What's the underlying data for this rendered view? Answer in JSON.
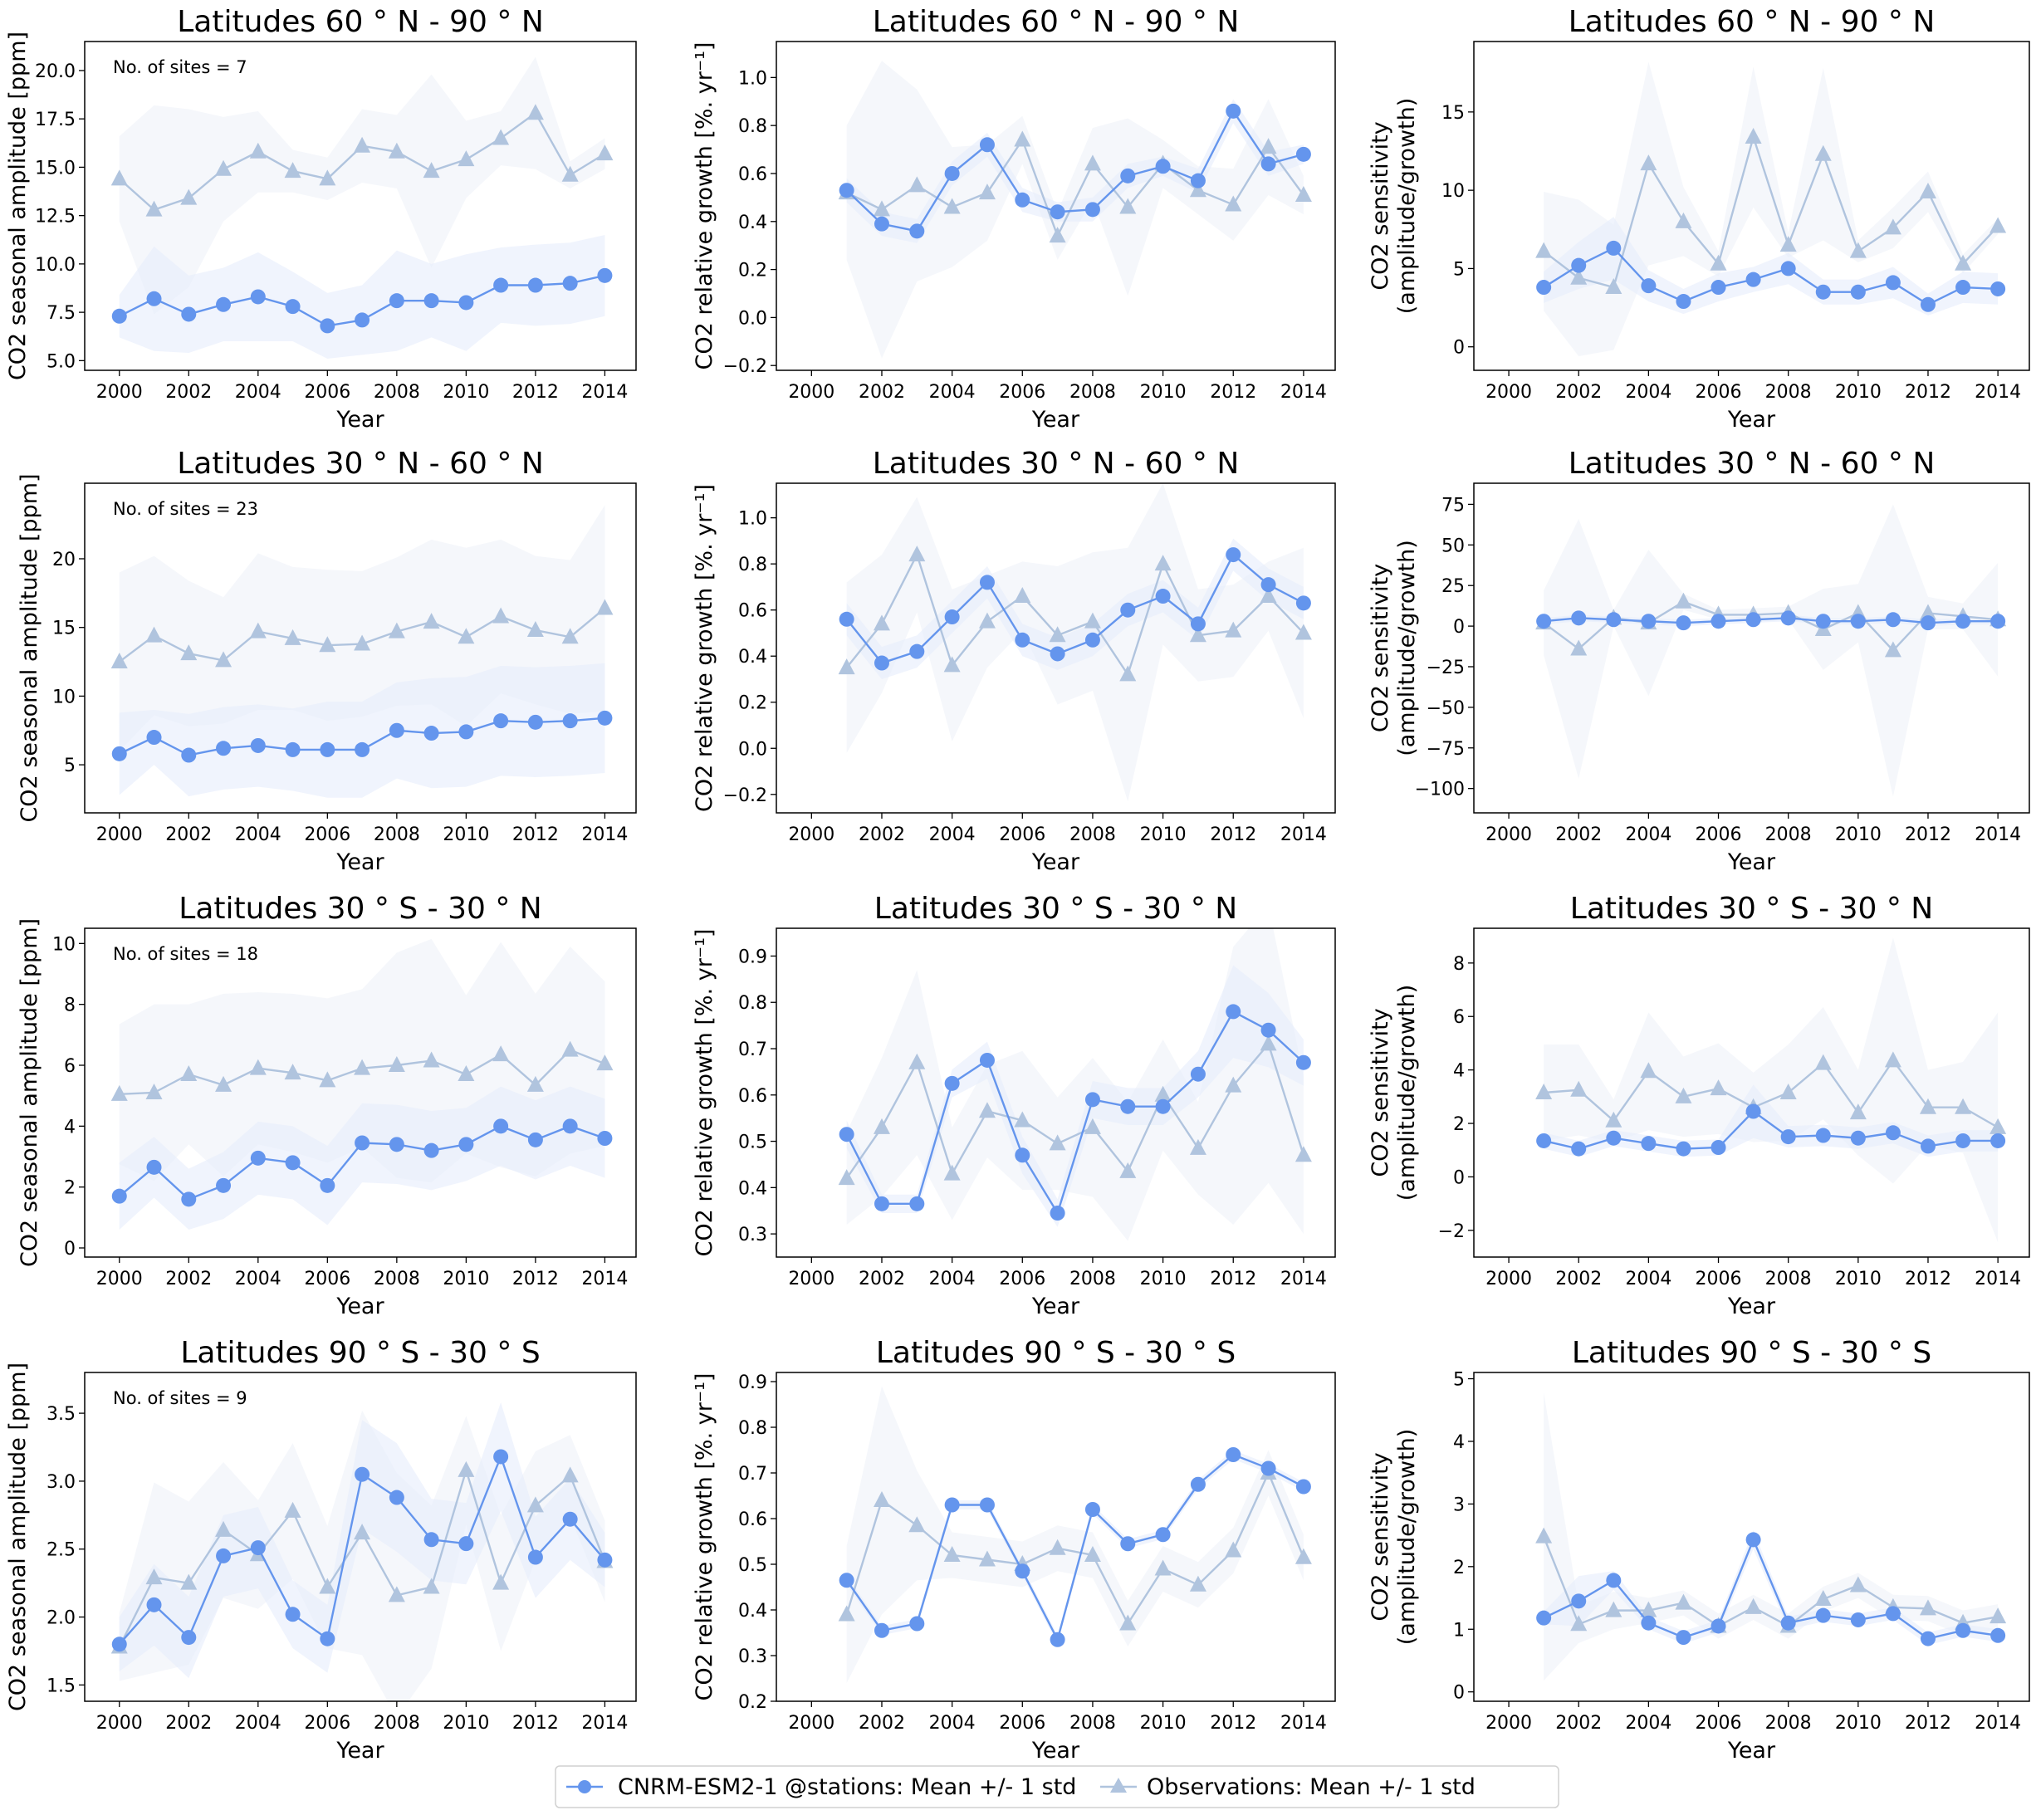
{
  "colors": {
    "model": "#6495ED",
    "observations": "#B0C4DE",
    "model_band": "#E6EDFB",
    "obs_band": "#EFF2F8"
  },
  "legend": {
    "placement": "bottom-center",
    "model_label": "CNRM-ESM2-1 @stations: Mean +/- 1 std",
    "obs_label": "Observations: Mean +/- 1 std"
  },
  "chart_data": [
    {
      "type": "line",
      "title": "Latitudes 60 ° N - 90 ° N",
      "xlabel": "Year",
      "ylabel": "CO2 seasonal amplitude [ppm]",
      "annotation": "No. of sites = 7",
      "xlim": [
        1999,
        2014.9
      ],
      "ylim": [
        4.5,
        21.5
      ],
      "yticks": [
        5,
        7.5,
        10,
        12.5,
        15,
        17.5,
        20
      ],
      "ytick_labels": [
        "5.0",
        "7.5",
        "10.0",
        "12.5",
        "15.0",
        "17.5",
        "20.0"
      ],
      "x": [
        2000,
        2001,
        2002,
        2003,
        2004,
        2005,
        2006,
        2007,
        2008,
        2009,
        2010,
        2011,
        2012,
        2013,
        2014
      ],
      "model_mean": [
        7.3,
        8.2,
        7.4,
        7.9,
        8.3,
        7.8,
        6.8,
        7.1,
        8.1,
        8.1,
        8.0,
        8.9,
        8.9,
        9.0,
        9.4
      ],
      "model_std": [
        1.1,
        2.7,
        2.0,
        1.9,
        2.3,
        1.8,
        1.7,
        1.8,
        2.6,
        1.9,
        2.5,
        1.95,
        2.1,
        2.1,
        2.1
      ],
      "obs_mean": [
        14.4,
        12.8,
        13.4,
        14.9,
        15.8,
        14.8,
        14.4,
        16.1,
        15.8,
        14.8,
        15.4,
        16.5,
        17.8,
        14.6,
        15.7
      ],
      "obs_std": [
        2.2,
        5.4,
        4.6,
        2.7,
        2.1,
        1.1,
        1.1,
        1.9,
        1.9,
        5.0,
        2.0,
        1.4,
        2.9,
        0.7,
        0.8
      ]
    },
    {
      "type": "line",
      "title": "Latitudes 60 ° N - 90 ° N",
      "xlabel": "Year",
      "ylabel": "CO2 relative growth [%. yr⁻¹]",
      "xlim": [
        1999,
        2014.9
      ],
      "ylim": [
        -0.22,
        1.15
      ],
      "yticks": [
        -0.2,
        0,
        0.2,
        0.4,
        0.6,
        0.8,
        1.0
      ],
      "ytick_labels": [
        "−0.2",
        "0.0",
        "0.2",
        "0.4",
        "0.6",
        "0.8",
        "1.0"
      ],
      "x": [
        2001,
        2002,
        2003,
        2004,
        2005,
        2006,
        2007,
        2008,
        2009,
        2010,
        2011,
        2012,
        2013,
        2014
      ],
      "model_mean": [
        0.53,
        0.39,
        0.36,
        0.6,
        0.72,
        0.49,
        0.44,
        0.45,
        0.59,
        0.63,
        0.57,
        0.86,
        0.64,
        0.68
      ],
      "model_std": [
        0.05,
        0.05,
        0.05,
        0.05,
        0.05,
        0.05,
        0.04,
        0.05,
        0.05,
        0.04,
        0.05,
        0.05,
        0.05,
        0.04
      ],
      "obs_mean": [
        0.52,
        0.45,
        0.55,
        0.46,
        0.52,
        0.74,
        0.34,
        0.64,
        0.46,
        0.64,
        0.53,
        0.47,
        0.71,
        0.51
      ],
      "obs_std": [
        0.28,
        0.62,
        0.4,
        0.25,
        0.2,
        0.1,
        0.1,
        0.15,
        0.37,
        0.1,
        0.1,
        0.15,
        0.2,
        0.08
      ]
    },
    {
      "type": "line",
      "title": "Latitudes 60 ° N - 90 ° N",
      "xlabel": "Year",
      "ylabel": [
        "CO2 sensitivity",
        "(amplitude/growth)"
      ],
      "xlim": [
        1999,
        2014.9
      ],
      "ylim": [
        -1.5,
        19.5
      ],
      "yticks": [
        0,
        5,
        10,
        15
      ],
      "ytick_labels": [
        "0",
        "5",
        "10",
        "15"
      ],
      "x": [
        2001,
        2002,
        2003,
        2004,
        2005,
        2006,
        2007,
        2008,
        2009,
        2010,
        2011,
        2012,
        2013,
        2014
      ],
      "model_mean": [
        3.8,
        5.2,
        6.3,
        3.9,
        2.9,
        3.8,
        4.3,
        5.0,
        3.5,
        3.5,
        4.1,
        2.7,
        3.8,
        3.7
      ],
      "model_std": [
        1,
        1.5,
        2,
        1,
        0.8,
        0.9,
        0.8,
        1,
        0.8,
        0.8,
        1,
        0.7,
        1,
        1
      ],
      "obs_mean": [
        6.1,
        4.4,
        3.8,
        11.7,
        8.0,
        5.3,
        13.4,
        6.5,
        12.3,
        6.1,
        7.6,
        9.9,
        5.3,
        7.7
      ],
      "obs_std": [
        3.8,
        5,
        4,
        6.5,
        2.2,
        0.8,
        4.5,
        0.8,
        5.5,
        0.7,
        1.3,
        1.3,
        0.6,
        0.5
      ]
    },
    {
      "type": "line",
      "title": "Latitudes 30 ° N - 60 ° N",
      "xlabel": "Year",
      "ylabel": "CO2 seasonal amplitude [ppm]",
      "annotation": "No. of sites = 23",
      "xlim": [
        1999,
        2014.9
      ],
      "ylim": [
        1.5,
        25.5
      ],
      "yticks": [
        5,
        10,
        15,
        20
      ],
      "ytick_labels": [
        "5",
        "10",
        "15",
        "20"
      ],
      "x": [
        2000,
        2001,
        2002,
        2003,
        2004,
        2005,
        2006,
        2007,
        2008,
        2009,
        2010,
        2011,
        2012,
        2013,
        2014
      ],
      "model_mean": [
        5.8,
        7.0,
        5.7,
        6.2,
        6.4,
        6.1,
        6.1,
        6.1,
        7.5,
        7.3,
        7.4,
        8.2,
        8.1,
        8.2,
        8.4
      ],
      "model_std": [
        3,
        2,
        3,
        3,
        3,
        3,
        3.5,
        3.5,
        3.5,
        4,
        4,
        4,
        4,
        4,
        4
      ],
      "obs_mean": [
        12.5,
        14.4,
        13.1,
        12.6,
        14.7,
        14.2,
        13.7,
        13.8,
        14.7,
        15.4,
        14.3,
        15.8,
        14.8,
        14.3,
        16.4
      ],
      "obs_std": [
        6.5,
        5.8,
        5.3,
        4.6,
        5.7,
        5.2,
        5.5,
        5.3,
        5.4,
        6,
        6.5,
        5.6,
        5.4,
        5.6,
        7.5
      ]
    },
    {
      "type": "line",
      "title": "Latitudes 30 ° N - 60 ° N",
      "xlabel": "Year",
      "ylabel": "CO2 relative growth [%. yr⁻¹]",
      "xlim": [
        1999,
        2014.9
      ],
      "ylim": [
        -0.28,
        1.15
      ],
      "yticks": [
        -0.2,
        0,
        0.2,
        0.4,
        0.6,
        0.8,
        1.0
      ],
      "ytick_labels": [
        "−0.2",
        "0.0",
        "0.2",
        "0.4",
        "0.6",
        "0.8",
        "1.0"
      ],
      "x": [
        2001,
        2002,
        2003,
        2004,
        2005,
        2006,
        2007,
        2008,
        2009,
        2010,
        2011,
        2012,
        2013,
        2014
      ],
      "model_mean": [
        0.56,
        0.37,
        0.42,
        0.57,
        0.72,
        0.47,
        0.41,
        0.47,
        0.6,
        0.66,
        0.54,
        0.84,
        0.71,
        0.63
      ],
      "model_std": [
        0.07,
        0.07,
        0.07,
        0.07,
        0.07,
        0.07,
        0.07,
        0.07,
        0.07,
        0.07,
        0.07,
        0.07,
        0.07,
        0.07
      ],
      "obs_mean": [
        0.35,
        0.54,
        0.84,
        0.36,
        0.55,
        0.66,
        0.49,
        0.55,
        0.32,
        0.8,
        0.49,
        0.51,
        0.66,
        0.5
      ],
      "obs_std": [
        0.37,
        0.3,
        0.25,
        0.33,
        0.2,
        0.15,
        0.3,
        0.3,
        0.55,
        0.35,
        0.2,
        0.2,
        0.15,
        0.37
      ]
    },
    {
      "type": "line",
      "title": "Latitudes 30 ° N - 60 ° N",
      "xlabel": "Year",
      "ylabel": [
        "CO2 sensitivity",
        "(amplitude/growth)"
      ],
      "xlim": [
        1999,
        2014.9
      ],
      "ylim": [
        -115,
        88
      ],
      "yticks": [
        -100,
        -75,
        -50,
        -25,
        0,
        25,
        50,
        75
      ],
      "ytick_labels": [
        "−100",
        "−75",
        "−50",
        "−25",
        "0",
        "25",
        "50",
        "75"
      ],
      "x": [
        2001,
        2002,
        2003,
        2004,
        2005,
        2006,
        2007,
        2008,
        2009,
        2010,
        2011,
        2012,
        2013,
        2014
      ],
      "model_mean": [
        3,
        5,
        4,
        3,
        2,
        3,
        4,
        5,
        3,
        3,
        4,
        2,
        3,
        3
      ],
      "model_std": [
        2,
        2,
        2,
        2,
        2,
        2,
        2,
        2,
        2,
        2,
        2,
        2,
        2,
        2
      ],
      "obs_mean": [
        2,
        -14,
        5,
        2,
        15,
        7,
        7,
        8,
        -2,
        8,
        -15,
        8,
        6,
        4
      ],
      "obs_std": [
        20,
        80,
        5,
        45,
        5,
        3,
        4,
        4,
        25,
        18,
        90,
        10,
        8,
        35
      ]
    },
    {
      "type": "line",
      "title": "Latitudes 30 ° S - 30 ° N",
      "xlabel": "Year",
      "ylabel": "CO2 seasonal amplitude [ppm]",
      "annotation": "No. of sites = 18",
      "xlim": [
        1999,
        2014.9
      ],
      "ylim": [
        -0.3,
        10.5
      ],
      "yticks": [
        0,
        2,
        4,
        6,
        8,
        10
      ],
      "ytick_labels": [
        "0",
        "2",
        "4",
        "6",
        "8",
        "10"
      ],
      "x": [
        2000,
        2001,
        2002,
        2003,
        2004,
        2005,
        2006,
        2007,
        2008,
        2009,
        2010,
        2011,
        2012,
        2013,
        2014
      ],
      "model_mean": [
        1.7,
        2.65,
        1.6,
        2.05,
        2.95,
        2.8,
        2.05,
        3.45,
        3.4,
        3.2,
        3.4,
        4.0,
        3.55,
        4.0,
        3.6
      ],
      "model_std": [
        1.1,
        1,
        1,
        1.1,
        1.2,
        1.2,
        1.3,
        1.3,
        1.3,
        1.3,
        1.2,
        1.3,
        1.3,
        1.3,
        1.3
      ],
      "obs_mean": [
        5.05,
        5.1,
        5.7,
        5.35,
        5.9,
        5.75,
        5.5,
        5.9,
        6.0,
        6.15,
        5.7,
        6.35,
        5.35,
        6.5,
        6.05
      ],
      "obs_std": [
        2.3,
        2.9,
        2.3,
        3,
        2.5,
        2.6,
        2.7,
        2.6,
        3.7,
        4,
        2.6,
        3.7,
        3,
        3.4,
        2.7
      ]
    },
    {
      "type": "line",
      "title": "Latitudes 30 ° S - 30 ° N",
      "xlabel": "Year",
      "ylabel": "CO2 relative growth [%. yr⁻¹]",
      "xlim": [
        1999,
        2014.9
      ],
      "ylim": [
        0.25,
        0.96
      ],
      "yticks": [
        0.3,
        0.4,
        0.5,
        0.6,
        0.7,
        0.8,
        0.9
      ],
      "ytick_labels": [
        "0.3",
        "0.4",
        "0.5",
        "0.6",
        "0.7",
        "0.8",
        "0.9"
      ],
      "x": [
        2001,
        2002,
        2003,
        2004,
        2005,
        2006,
        2007,
        2008,
        2009,
        2010,
        2011,
        2012,
        2013,
        2014
      ],
      "model_mean": [
        0.515,
        0.365,
        0.365,
        0.625,
        0.675,
        0.47,
        0.345,
        0.59,
        0.575,
        0.575,
        0.645,
        0.78,
        0.74,
        0.67
      ],
      "model_std": [
        0.03,
        0.02,
        0.02,
        0.03,
        0.04,
        0.04,
        0.03,
        0.04,
        0.04,
        0.04,
        0.05,
        0.1,
        0.08,
        0.05
      ],
      "obs_mean": [
        0.42,
        0.53,
        0.67,
        0.43,
        0.565,
        0.545,
        0.495,
        0.53,
        0.435,
        0.6,
        0.485,
        0.62,
        0.71,
        0.47
      ],
      "obs_std": [
        0.1,
        0.15,
        0.2,
        0.1,
        0.1,
        0.15,
        0.1,
        0.15,
        0.15,
        0.12,
        0.1,
        0.3,
        0.3,
        0.17
      ]
    },
    {
      "type": "line",
      "title": "Latitudes 30 ° S - 30 ° N",
      "xlabel": "Year",
      "ylabel": [
        "CO2 sensitivity",
        "(amplitude/growth)"
      ],
      "xlim": [
        1999,
        2014.9
      ],
      "ylim": [
        -3,
        9.3
      ],
      "yticks": [
        -2,
        0,
        2,
        4,
        6,
        8
      ],
      "ytick_labels": [
        "−2",
        "0",
        "2",
        "4",
        "6",
        "8"
      ],
      "x": [
        2001,
        2002,
        2003,
        2004,
        2005,
        2006,
        2007,
        2008,
        2009,
        2010,
        2011,
        2012,
        2013,
        2014
      ],
      "model_mean": [
        1.35,
        1.05,
        1.45,
        1.25,
        1.05,
        1.1,
        2.45,
        1.5,
        1.55,
        1.45,
        1.65,
        1.15,
        1.35,
        1.35
      ],
      "model_std": [
        0.3,
        0.3,
        0.3,
        0.3,
        0.3,
        0.3,
        1,
        0.4,
        0.4,
        0.4,
        0.4,
        0.4,
        0.4,
        0.4
      ],
      "obs_mean": [
        3.15,
        3.25,
        2.1,
        3.95,
        3.0,
        3.3,
        2.6,
        3.15,
        4.25,
        2.4,
        4.35,
        2.6,
        2.6,
        1.85
      ],
      "obs_std": [
        1.8,
        1.7,
        0.8,
        2.2,
        1.5,
        1.7,
        1.3,
        1.8,
        2.1,
        1.6,
        4.6,
        1.4,
        1.7,
        4.3
      ]
    },
    {
      "type": "line",
      "title": "Latitudes 90 ° S - 30 ° S",
      "xlabel": "Year",
      "ylabel": "CO2 seasonal amplitude [ppm]",
      "annotation": "No. of sites = 9",
      "xlim": [
        1999,
        2014.9
      ],
      "ylim": [
        1.38,
        3.8
      ],
      "yticks": [
        1.5,
        2.0,
        2.5,
        3.0,
        3.5
      ],
      "ytick_labels": [
        "1.5",
        "2.0",
        "2.5",
        "3.0",
        "3.5"
      ],
      "x": [
        2000,
        2001,
        2002,
        2003,
        2004,
        2005,
        2006,
        2007,
        2008,
        2009,
        2010,
        2011,
        2012,
        2013,
        2014
      ],
      "model_mean": [
        1.8,
        2.09,
        1.85,
        2.45,
        2.51,
        2.02,
        1.84,
        3.05,
        2.88,
        2.57,
        2.54,
        3.18,
        2.44,
        2.72,
        2.42
      ],
      "model_std": [
        0.2,
        0.3,
        0.3,
        0.3,
        0.3,
        0.25,
        0.25,
        0.4,
        0.4,
        0.3,
        0.3,
        0.4,
        0.3,
        0.3,
        0.2
      ],
      "obs_mean": [
        1.78,
        2.29,
        2.25,
        2.64,
        2.46,
        2.78,
        2.22,
        2.62,
        2.16,
        2.22,
        3.08,
        2.25,
        2.82,
        3.04,
        2.41
      ],
      "obs_std": [
        0.25,
        0.7,
        0.6,
        0.5,
        0.4,
        0.5,
        0.45,
        0.9,
        0.9,
        0.6,
        0.4,
        0.5,
        0.4,
        0.3,
        0.3
      ]
    },
    {
      "type": "line",
      "title": "Latitudes 90 ° S - 30 ° S",
      "xlabel": "Year",
      "ylabel": "CO2 relative growth [%. yr⁻¹]",
      "xlim": [
        1999,
        2014.9
      ],
      "ylim": [
        0.2,
        0.92
      ],
      "yticks": [
        0.2,
        0.3,
        0.4,
        0.5,
        0.6,
        0.7,
        0.8,
        0.9
      ],
      "ytick_labels": [
        "0.2",
        "0.3",
        "0.4",
        "0.5",
        "0.6",
        "0.7",
        "0.8",
        "0.9"
      ],
      "x": [
        2001,
        2002,
        2003,
        2004,
        2005,
        2006,
        2007,
        2008,
        2009,
        2010,
        2011,
        2012,
        2013,
        2014
      ],
      "model_mean": [
        0.465,
        0.355,
        0.37,
        0.63,
        0.63,
        0.485,
        0.335,
        0.62,
        0.545,
        0.565,
        0.675,
        0.74,
        0.71,
        0.67
      ],
      "model_std": [
        0.01,
        0.01,
        0.01,
        0.01,
        0.01,
        0.01,
        0.01,
        0.01,
        0.01,
        0.01,
        0.01,
        0.01,
        0.01,
        0.01
      ],
      "obs_mean": [
        0.39,
        0.64,
        0.585,
        0.52,
        0.51,
        0.5,
        0.535,
        0.52,
        0.37,
        0.49,
        0.455,
        0.53,
        0.7,
        0.515
      ],
      "obs_std": [
        0.15,
        0.25,
        0.12,
        0.05,
        0.05,
        0.05,
        0.05,
        0.05,
        0.05,
        0.05,
        0.05,
        0.05,
        0.05,
        0.05
      ]
    },
    {
      "type": "line",
      "title": "Latitudes 90 ° S - 30 ° S",
      "xlabel": "Year",
      "ylabel": [
        "CO2 sensitivity",
        "(amplitude/growth)"
      ],
      "xlim": [
        1999,
        2014.9
      ],
      "ylim": [
        -0.15,
        5.1
      ],
      "yticks": [
        0,
        1,
        2,
        3,
        4,
        5
      ],
      "ytick_labels": [
        "0",
        "1",
        "2",
        "3",
        "4",
        "5"
      ],
      "x": [
        2001,
        2002,
        2003,
        2004,
        2005,
        2006,
        2007,
        2008,
        2009,
        2010,
        2011,
        2012,
        2013,
        2014
      ],
      "model_mean": [
        1.18,
        1.45,
        1.78,
        1.1,
        0.87,
        1.05,
        2.43,
        1.1,
        1.22,
        1.15,
        1.25,
        0.85,
        0.98,
        0.9
      ],
      "model_std": [
        0.1,
        0.4,
        0.15,
        0.1,
        0.1,
        0.1,
        0.15,
        0.1,
        0.1,
        0.1,
        0.1,
        0.1,
        0.1,
        0.1
      ],
      "obs_mean": [
        2.48,
        1.08,
        1.3,
        1.3,
        1.42,
        1.05,
        1.35,
        1.05,
        1.48,
        1.7,
        1.35,
        1.33,
        1.1,
        1.2
      ],
      "obs_std": [
        2.3,
        0.3,
        0.3,
        0.2,
        0.2,
        0.2,
        0.2,
        0.2,
        0.2,
        0.2,
        0.2,
        0.2,
        0.2,
        0.2
      ]
    }
  ],
  "xticks": [
    2000,
    2002,
    2004,
    2006,
    2008,
    2010,
    2012,
    2014
  ]
}
